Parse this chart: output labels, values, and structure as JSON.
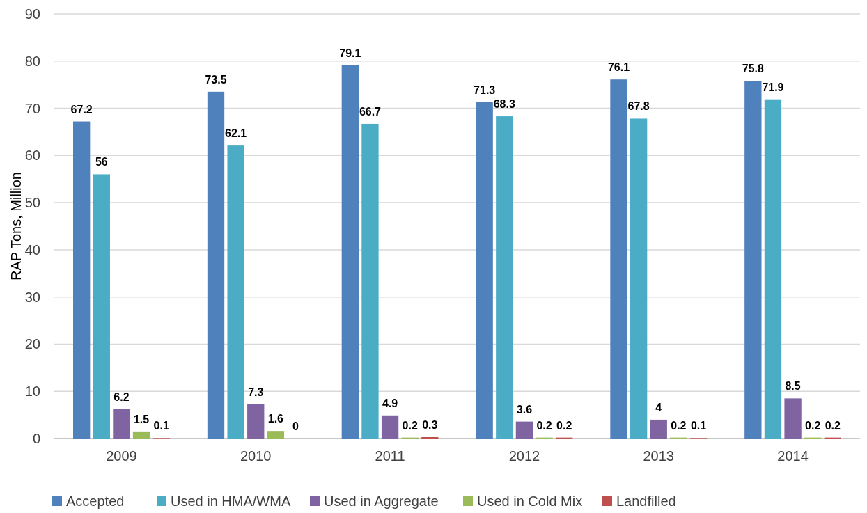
{
  "chart_data": {
    "type": "bar",
    "ylabel": "RAP Tons, Million",
    "categories": [
      "2009",
      "2010",
      "2011",
      "2012",
      "2013",
      "2014"
    ],
    "series": [
      {
        "name": "Accepted",
        "color": "#4f81bd",
        "values": [
          67.2,
          73.5,
          79.1,
          71.3,
          76.1,
          75.8
        ]
      },
      {
        "name": "Used in HMA/WMA",
        "color": "#4bacc6",
        "values": [
          56,
          62.1,
          66.7,
          68.3,
          67.8,
          71.9
        ]
      },
      {
        "name": "Used in Aggregate",
        "color": "#8064a2",
        "values": [
          6.2,
          7.3,
          4.9,
          3.6,
          4,
          8.5
        ]
      },
      {
        "name": "Used in Cold Mix",
        "color": "#9bbb59",
        "values": [
          1.5,
          1.6,
          0.2,
          0.2,
          0.2,
          0.2
        ]
      },
      {
        "name": "Landfilled",
        "color": "#c0504d",
        "values": [
          0.1,
          0,
          0.3,
          0.2,
          0.1,
          0.2
        ]
      }
    ],
    "ylim": [
      0,
      90
    ],
    "yticks": [
      0,
      10,
      20,
      30,
      40,
      50,
      60,
      70,
      80,
      90
    ],
    "grid": "y",
    "legend": "bottom",
    "data_labels": true
  }
}
